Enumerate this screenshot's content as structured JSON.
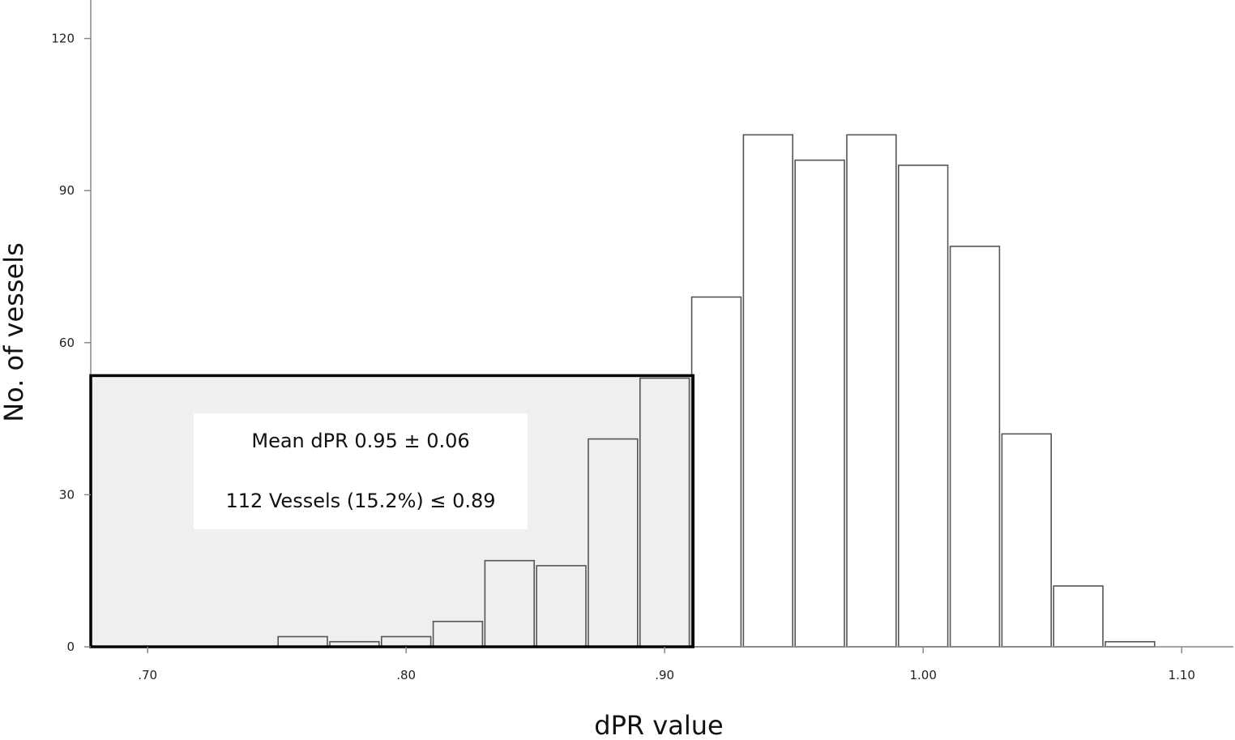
{
  "chart_data": {
    "type": "bar",
    "subtype": "histogram",
    "xlabel": "dPR value",
    "ylabel": "No. of vessels",
    "xlim": [
      0.678,
      1.12
    ],
    "ylim": [
      0,
      126
    ],
    "x_ticks": [
      0.7,
      0.8,
      0.9,
      1.0,
      1.1
    ],
    "x_tick_labels": [
      ".70",
      ".80",
      ".90",
      "1.00",
      "1.10"
    ],
    "y_ticks": [
      0,
      30,
      60,
      90,
      120
    ],
    "y_tick_labels": [
      "0",
      "30",
      "60",
      "90",
      "120"
    ],
    "bin_width": 0.02,
    "bins": [
      {
        "start": 0.75,
        "end": 0.77,
        "count": 2
      },
      {
        "start": 0.77,
        "end": 0.79,
        "count": 1
      },
      {
        "start": 0.79,
        "end": 0.81,
        "count": 2
      },
      {
        "start": 0.81,
        "end": 0.83,
        "count": 5
      },
      {
        "start": 0.83,
        "end": 0.85,
        "count": 17
      },
      {
        "start": 0.85,
        "end": 0.87,
        "count": 16
      },
      {
        "start": 0.87,
        "end": 0.89,
        "count": 41
      },
      {
        "start": 0.89,
        "end": 0.91,
        "count": 53
      },
      {
        "start": 0.91,
        "end": 0.93,
        "count": 69
      },
      {
        "start": 0.93,
        "end": 0.95,
        "count": 101
      },
      {
        "start": 0.95,
        "end": 0.97,
        "count": 96
      },
      {
        "start": 0.97,
        "end": 0.99,
        "count": 101
      },
      {
        "start": 0.99,
        "end": 1.01,
        "count": 95
      },
      {
        "start": 1.01,
        "end": 1.03,
        "count": 79
      },
      {
        "start": 1.03,
        "end": 1.05,
        "count": 42
      },
      {
        "start": 1.05,
        "end": 1.07,
        "count": 12
      },
      {
        "start": 1.07,
        "end": 1.09,
        "count": 1
      }
    ],
    "highlight_region": {
      "x_range": [
        0.678,
        0.911
      ],
      "y_max": 53.5,
      "fill": "#efefef",
      "stroke": "#000000"
    },
    "annotations": [
      "Mean dPR 0.95 ± 0.06",
      "112 Vessels (15.2%) ≤ 0.89"
    ],
    "colors": {
      "bar_fill": "#ffffff",
      "bar_stroke": "#555555",
      "axis": "#888888"
    },
    "grid": false,
    "legend": "none"
  }
}
